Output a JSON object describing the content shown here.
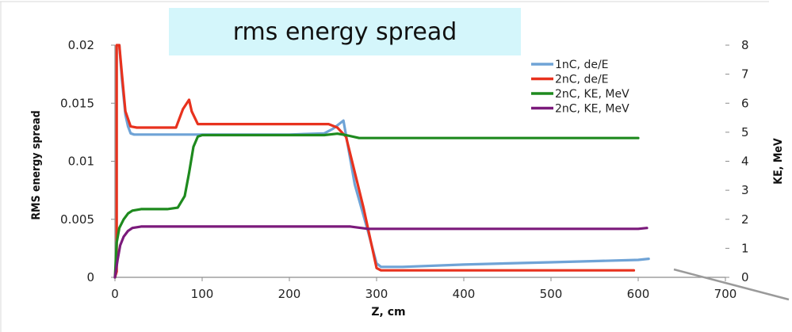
{
  "chart_data": {
    "type": "line",
    "title": "rms energy spread",
    "xlabel": "Z, cm",
    "ylabel": "RMS energy spread",
    "y2label": "KE, MeV",
    "xlim": [
      0,
      700
    ],
    "ylim": [
      0,
      0.02
    ],
    "y2lim": [
      0,
      8
    ],
    "xticks": [
      "0",
      "100",
      "200",
      "300",
      "400",
      "500",
      "600",
      "700"
    ],
    "yticks": [
      "0",
      "0.005",
      "0.01",
      "0.015",
      "0.02"
    ],
    "y2ticks": [
      "0",
      "1",
      "2",
      "3",
      "4",
      "5",
      "6",
      "7",
      "8"
    ],
    "grid": false,
    "legend_position": "top-right",
    "series": [
      {
        "name": "1nC, de/E",
        "axis": "left",
        "color": "#6fa3d6",
        "x": [
          5,
          8,
          12,
          15,
          18,
          22,
          30,
          60,
          100,
          150,
          200,
          240,
          250,
          262,
          275,
          290,
          300,
          305,
          330,
          400,
          450,
          500,
          550,
          600,
          612
        ],
        "y": [
          0.02,
          0.017,
          0.014,
          0.013,
          0.0124,
          0.0123,
          0.0123,
          0.0123,
          0.0123,
          0.0123,
          0.0123,
          0.0124,
          0.0128,
          0.0135,
          0.008,
          0.004,
          0.0012,
          0.0009,
          0.0009,
          0.0011,
          0.0012,
          0.0013,
          0.0014,
          0.0015,
          0.0016
        ]
      },
      {
        "name": "2nC, de/E",
        "axis": "left",
        "color": "#e8321e",
        "x": [
          0,
          2,
          2,
          5,
          8,
          12,
          18,
          25,
          40,
          70,
          78,
          85,
          88,
          95,
          100,
          150,
          200,
          245,
          255,
          265,
          285,
          300,
          305,
          350,
          400,
          500,
          595
        ],
        "y": [
          0,
          0.0005,
          0.02,
          0.02,
          0.0175,
          0.0143,
          0.013,
          0.0129,
          0.0129,
          0.0129,
          0.0145,
          0.0153,
          0.0143,
          0.0132,
          0.0132,
          0.0132,
          0.0132,
          0.0132,
          0.0129,
          0.0121,
          0.006,
          0.0008,
          0.0006,
          0.0006,
          0.0006,
          0.0006,
          0.0006
        ]
      },
      {
        "name": "2nC, KE, MeV",
        "axis": "right",
        "color": "#1e8a1e",
        "x": [
          0,
          2,
          5,
          10,
          15,
          20,
          30,
          60,
          72,
          80,
          85,
          90,
          95,
          100,
          150,
          200,
          240,
          255,
          265,
          280,
          300,
          400,
          500,
          600
        ],
        "y": [
          0,
          1.2,
          1.7,
          2.0,
          2.2,
          2.3,
          2.35,
          2.35,
          2.4,
          2.8,
          3.6,
          4.5,
          4.85,
          4.9,
          4.9,
          4.9,
          4.9,
          4.95,
          4.9,
          4.8,
          4.8,
          4.8,
          4.8,
          4.8
        ]
      },
      {
        "name": "2nC, KE, MeV",
        "axis": "right",
        "color": "#7b1a7b",
        "x": [
          0,
          3,
          6,
          10,
          15,
          20,
          30,
          100,
          200,
          270,
          290,
          300,
          400,
          500,
          600,
          610
        ],
        "y": [
          0,
          0.6,
          1.1,
          1.4,
          1.6,
          1.7,
          1.75,
          1.75,
          1.75,
          1.75,
          1.67,
          1.67,
          1.67,
          1.67,
          1.67,
          1.7
        ]
      }
    ]
  }
}
